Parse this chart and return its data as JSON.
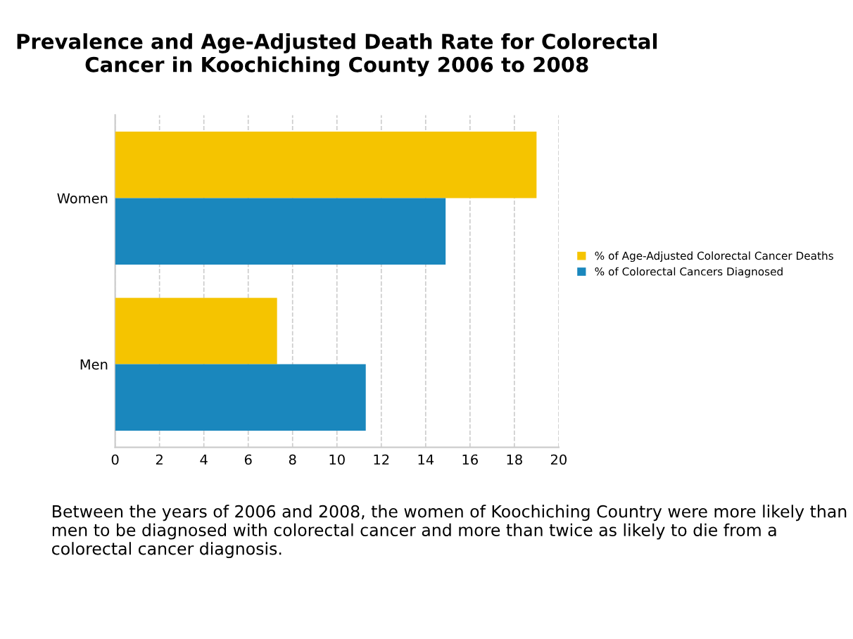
{
  "chart_data": {
    "type": "bar",
    "orientation": "horizontal",
    "title": "Prevalence and Age-Adjusted Death Rate for Colorectal\nCancer in Koochiching County 2006 to 2008",
    "categories": [
      "Women",
      "Men"
    ],
    "series": [
      {
        "name": "% of Age-Adjusted Colorectal Cancer Deaths",
        "color": "#f5c400",
        "values": [
          19.0,
          7.3
        ]
      },
      {
        "name": "% of Colorectal Cancers Diagnosed",
        "color": "#1a87bd",
        "values": [
          14.9,
          11.3
        ]
      }
    ],
    "xlim": [
      0,
      20
    ],
    "xticks": [
      0,
      2,
      4,
      6,
      8,
      10,
      12,
      14,
      16,
      18,
      20
    ],
    "grid": "x",
    "legend": "right",
    "annotations": [
      "Between the years of 2006 and 2008, the women of Koochiching Country were more likely than men to be diagnosed with colorectal cancer and more than twice as likely to die from a colorectal cancer diagnosis."
    ]
  }
}
